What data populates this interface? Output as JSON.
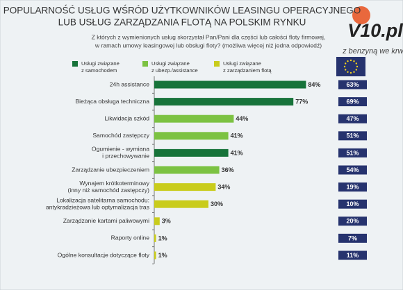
{
  "chart_data": {
    "type": "bar",
    "title": [
      "POPULARNOŚĆ USŁUG WŚRÓD UŻYTKOWNIKÓW LEASINGU OPERACYJNEGO",
      "LUB USŁUG ZARZĄDZANIA FLOTĄ NA POLSKIM RYNKU"
    ],
    "subtitle": [
      "Z których z wymienionych usług skorzystał Pan/Pani dla części lub całości floty firmowej,",
      "w ramach umowy leasingowej lub obsługi floty? (możliwa więcej niż jedna odpowiedź)"
    ],
    "legend": [
      {
        "name": [
          "Usługi związane",
          "z samochodem"
        ],
        "color": "#17733a"
      },
      {
        "name": [
          "Usługi związane",
          "z ubezp./assistance"
        ],
        "color": "#7cc242"
      },
      {
        "name": [
          "Usługi związane",
          "z zarządzaniem flotą"
        ],
        "color": "#c9cc1c"
      }
    ],
    "categories": [
      [
        "24h assistance"
      ],
      [
        "Bieżąca obsługa techniczna"
      ],
      [
        "Likwidacja szkód"
      ],
      [
        "Samochód zastępczy"
      ],
      [
        "Ogumienie - wymiana",
        "i przechowywanie"
      ],
      [
        "Zarządzanie ubezpieczeniem"
      ],
      [
        "Wynajem krótkoterminowy",
        "(inny niż samochód zastępczy)"
      ],
      [
        "Lokalizacja satelitarna samochodu:",
        "antykradzieżowa lub optymalizacja tras"
      ],
      [
        "Zarządzanie kartami paliwowymi"
      ],
      [
        "Raporty online"
      ],
      [
        "Ogólne konsultacje dotyczące floty"
      ]
    ],
    "values": [
      84,
      77,
      44,
      41,
      41,
      36,
      34,
      30,
      3,
      1,
      1
    ],
    "value_labels": [
      "84%",
      "77%",
      "44%",
      "41%",
      "41%",
      "36%",
      "34%",
      "30%",
      "3%",
      "1%",
      "1%"
    ],
    "colors": [
      "#17733a",
      "#17733a",
      "#7cc242",
      "#7cc242",
      "#17733a",
      "#7cc242",
      "#c9cc1c",
      "#c9cc1c",
      "#c9cc1c",
      "#c9cc1c",
      "#c9cc1c"
    ],
    "eu_values": [
      63,
      69,
      47,
      51,
      51,
      54,
      19,
      10,
      20,
      7,
      11
    ],
    "eu_value_labels": [
      "63%",
      "69%",
      "47%",
      "51%",
      "51%",
      "54%",
      "19%",
      "10%",
      "20%",
      "7%",
      "11%"
    ],
    "eu_color": "#26336e",
    "xlim": [
      0,
      100
    ]
  },
  "logo": {
    "name": "V10.pl",
    "slogan": "z benzyną we krwi"
  }
}
